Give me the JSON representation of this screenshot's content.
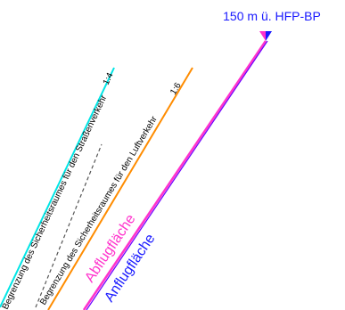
{
  "height_label": "150 m ü. HFP-BP",
  "lines": {
    "road_boundary": {
      "label": "Begrenzung des Sicherheitsraumes für den Straßenverkehr",
      "ratio": "1:4",
      "color": "#00e5e5"
    },
    "air_boundary": {
      "label": "Begrenzung des Sicherheitsraumes für den Luftverkehr",
      "ratio": "1:6",
      "color": "#ff8c00"
    },
    "takeoff_surface": {
      "label": "Abflugfläche",
      "color": "#ff33cc"
    },
    "approach_surface": {
      "label": "Anflugfläche",
      "color": "#1a1aff"
    },
    "dashed_reference": {
      "color": "#555555"
    }
  },
  "marker": {
    "icon": "triangle-down-marker",
    "color_left": "#ff33cc",
    "color_right": "#1a1aff"
  }
}
